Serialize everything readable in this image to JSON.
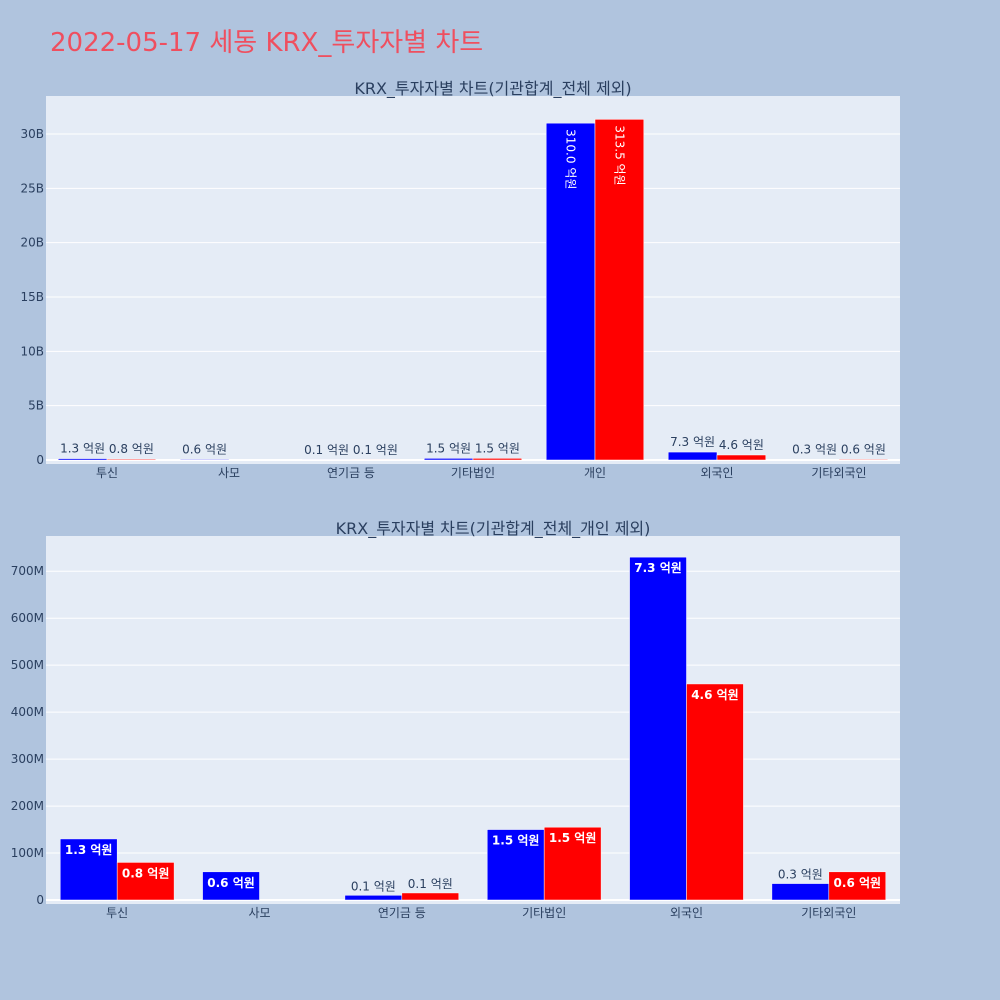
{
  "page_title": "2022-05-17 세동 KRX_투자자별 차트",
  "colors": {
    "series1": "#0000ff",
    "series2": "#ff0000",
    "plot_bg": "#e5ecf6",
    "page_bg": "#b0c4de",
    "title": "#ef4f5f"
  },
  "chart_data": [
    {
      "type": "bar",
      "title": "KRX_투자자별 차트(기관합계_전체 제외)",
      "categories": [
        "투신",
        "사모",
        "연기금 등",
        "기타법인",
        "개인",
        "외국인",
        "기타외국인"
      ],
      "series": [
        {
          "values": [
            130000000,
            60000000,
            10000000,
            150000000,
            31000000000,
            730000000,
            30000000
          ],
          "labels": [
            "1.3 억원",
            "0.6 억원",
            "0.1 억원",
            "1.5 억원",
            "310.0 억원",
            "7.3 억원",
            "0.3 억원"
          ]
        },
        {
          "values": [
            80000000,
            0,
            10000000,
            150000000,
            31350000000,
            460000000,
            60000000
          ],
          "labels": [
            "0.8 억원",
            "",
            "0.1 억원",
            "1.5 억원",
            "313.5 억원",
            "4.6 억원",
            "0.6 억원"
          ]
        }
      ],
      "yticks": [
        "0",
        "5B",
        "10B",
        "15B",
        "20B",
        "25B",
        "30B"
      ],
      "ylim": [
        0,
        33500000000
      ],
      "grid": true
    },
    {
      "type": "bar",
      "title": "KRX_투자자별 차트(기관합계_전체_개인 제외)",
      "categories": [
        "투신",
        "사모",
        "연기금 등",
        "기타법인",
        "외국인",
        "기타외국인"
      ],
      "series": [
        {
          "values": [
            130000000,
            60000000,
            10000000,
            150000000,
            730000000,
            35000000
          ],
          "labels": [
            "1.3 억원",
            "0.6 억원",
            "0.1 억원",
            "1.5 억원",
            "7.3 억원",
            "0.3 억원"
          ]
        },
        {
          "values": [
            80000000,
            0,
            15000000,
            155000000,
            460000000,
            60000000
          ],
          "labels": [
            "0.8 억원",
            "",
            "0.1 억원",
            "1.5 억원",
            "4.6 억원",
            "0.6 억원"
          ]
        }
      ],
      "yticks": [
        "0",
        "100M",
        "200M",
        "300M",
        "400M",
        "500M",
        "600M",
        "700M"
      ],
      "ylim": [
        0,
        775000000
      ],
      "grid": true
    }
  ]
}
